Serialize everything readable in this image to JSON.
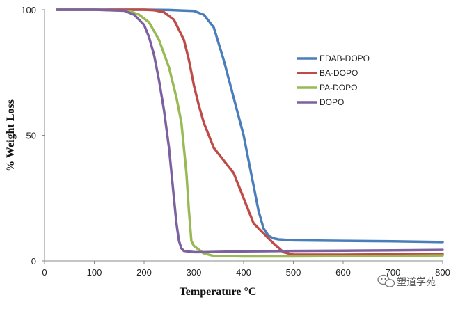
{
  "chart_data": {
    "type": "line",
    "xlabel": "Temperature   °C",
    "ylabel": "%  Weight Loss",
    "xlim": [
      0,
      800
    ],
    "ylim": [
      0,
      100
    ],
    "xticks": [
      0,
      100,
      200,
      300,
      400,
      500,
      600,
      700,
      800
    ],
    "yticks": [
      0,
      50,
      100
    ],
    "grid": false,
    "legend_position": "right",
    "series": [
      {
        "name": "EDAB-DOPO",
        "color": "#4a7ebb",
        "x": [
          25,
          100,
          200,
          250,
          300,
          320,
          340,
          360,
          380,
          400,
          410,
          420,
          430,
          440,
          450,
          460,
          470,
          500,
          600,
          700,
          800
        ],
        "y": [
          100,
          100,
          100,
          99.9,
          99.5,
          98,
          93,
          80,
          65,
          50,
          40,
          30,
          20,
          13,
          10,
          9,
          8.6,
          8.2,
          8,
          7.8,
          7.5
        ]
      },
      {
        "name": "BA-DOPO",
        "color": "#be4b48",
        "x": [
          25,
          100,
          200,
          220,
          240,
          260,
          280,
          290,
          300,
          310,
          320,
          340,
          360,
          380,
          400,
          420,
          440,
          460,
          480,
          500,
          600,
          700,
          800
        ],
        "y": [
          100,
          100,
          100,
          99.8,
          99,
          96,
          88,
          80,
          70,
          62,
          55,
          45,
          40,
          35,
          25,
          15,
          11,
          7,
          3.5,
          2.5,
          2.5,
          2.6,
          2.8
        ]
      },
      {
        "name": "PA-DOPO",
        "color": "#98b954",
        "x": [
          25,
          100,
          170,
          190,
          210,
          230,
          250,
          265,
          275,
          285,
          290,
          295,
          300,
          320,
          340,
          400,
          500,
          600,
          700,
          800
        ],
        "y": [
          100,
          100,
          99.5,
          98,
          95,
          88,
          77,
          65,
          55,
          35,
          20,
          8,
          6,
          3,
          2,
          1.8,
          1.8,
          1.9,
          2,
          2.2
        ]
      },
      {
        "name": "DOPO",
        "color": "#7d60a0",
        "x": [
          25,
          100,
          160,
          180,
          200,
          210,
          220,
          230,
          240,
          250,
          260,
          265,
          270,
          275,
          280,
          300,
          320,
          400,
          500,
          600,
          700,
          800
        ],
        "y": [
          100,
          100,
          99.6,
          98,
          94,
          89,
          82,
          72,
          60,
          45,
          25,
          15,
          8,
          5,
          4,
          3.5,
          3.5,
          3.8,
          4,
          4.1,
          4.2,
          4.4
        ]
      }
    ]
  },
  "watermark": {
    "icon": "wechat-icon",
    "text": "塑道学苑"
  }
}
